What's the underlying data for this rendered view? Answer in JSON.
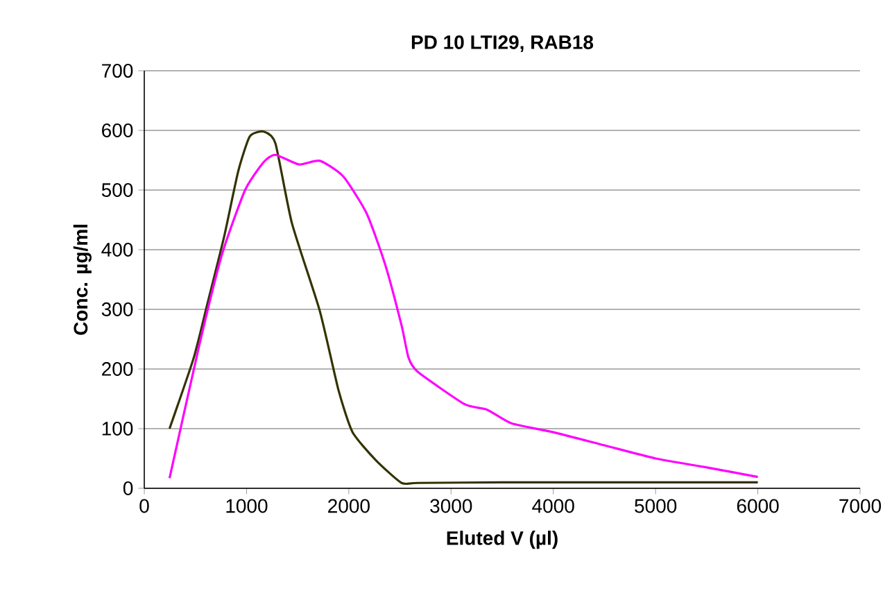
{
  "chart_data": {
    "type": "line",
    "title": "PD 10  LTI29, RAB18",
    "xlabel": "Eluted V (µl)",
    "ylabel": "Conc. µg/ml",
    "series": [
      {
        "color": "#333300",
        "x": [
          247,
          484,
          621,
          781,
          918,
          1032,
          1169,
          1283,
          1443,
          1717,
          1900,
          2037,
          2265,
          2516,
          2676,
          3500,
          4500,
          5500,
          6000
        ],
        "values": [
          100,
          219,
          312,
          422,
          531,
          590,
          598,
          578,
          445,
          297,
          164,
          94,
          47,
          9,
          9,
          10,
          10,
          10,
          10
        ]
      },
      {
        "color": "#ff00ff",
        "x": [
          247,
          530,
          758,
          986,
          1169,
          1283,
          1511,
          1717,
          1945,
          2174,
          2356,
          2516,
          2584,
          2676,
          3132,
          3350,
          3589,
          4000,
          4500,
          5000,
          5500,
          6000
        ],
        "values": [
          17,
          234,
          391,
          500,
          547,
          559,
          543,
          549,
          523,
          461,
          375,
          273,
          219,
          195,
          141,
          132,
          109,
          94,
          72,
          50,
          35,
          19
        ]
      }
    ],
    "xlim": [
      0,
      7000
    ],
    "xticks": [
      0,
      1000,
      2000,
      3000,
      4000,
      5000,
      6000,
      7000
    ],
    "ylim": [
      0,
      700
    ],
    "yticks": [
      0,
      100,
      200,
      300,
      400,
      500,
      600,
      700
    ],
    "grid": "y",
    "line_style": "solid",
    "marker": "none"
  }
}
